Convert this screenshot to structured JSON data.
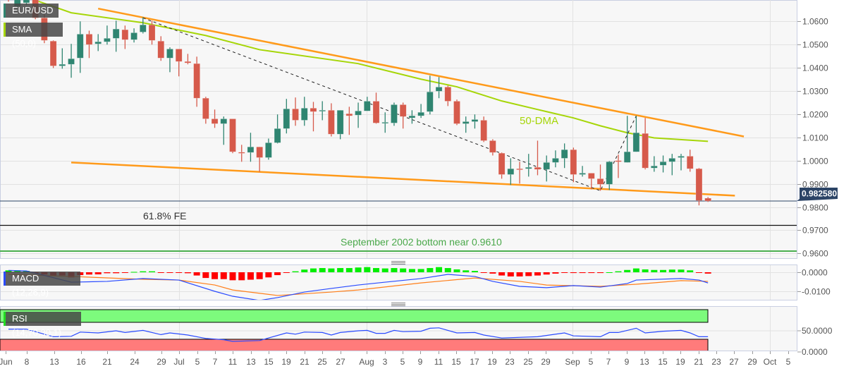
{
  "chart_data": {
    "type": "candlestick",
    "symbol": "EUR/USD",
    "candle_fields": [
      "date",
      "open",
      "high",
      "low",
      "close"
    ],
    "candles": [
      [
        "Jun 6",
        1.072,
        1.074,
        1.0685,
        1.0695
      ],
      [
        "Jun 7",
        1.0665,
        1.0735,
        1.0661,
        1.071
      ],
      [
        "Jun 8",
        1.068,
        1.0745,
        1.067,
        1.072
      ],
      [
        "Jun 9",
        1.0715,
        1.076,
        1.0609,
        1.0615
      ],
      [
        "Jun 10",
        1.0615,
        1.063,
        1.0506,
        1.0518
      ],
      [
        "Jun 13",
        1.0515,
        1.0518,
        1.0399,
        1.0408
      ],
      [
        "Jun 14",
        1.0408,
        1.0484,
        1.0396,
        1.0415
      ],
      [
        "Jun 15",
        1.0415,
        1.0503,
        1.0357,
        1.0439
      ],
      [
        "Jun 16",
        1.0442,
        1.06,
        1.0378,
        1.0545
      ],
      [
        "Jun 17",
        1.0545,
        1.056,
        1.0442,
        1.05
      ],
      [
        "Jun 20",
        1.0503,
        1.0545,
        1.0472,
        1.0512
      ],
      [
        "Jun 21",
        1.0512,
        1.0582,
        1.05,
        1.0527
      ],
      [
        "Jun 22",
        1.0527,
        1.0603,
        1.0469,
        1.0567
      ],
      [
        "Jun 23",
        1.0564,
        1.0582,
        1.0481,
        1.0521
      ],
      [
        "Jun 24",
        1.0521,
        1.057,
        1.0509,
        1.0551
      ],
      [
        "Jun 27",
        1.0554,
        1.0618,
        1.0548,
        1.0585
      ],
      [
        "Jun 28",
        1.0585,
        1.0603,
        1.05,
        1.0518
      ],
      [
        "Jun 29",
        1.0515,
        1.0536,
        1.043,
        1.0442
      ],
      [
        "Jun 30",
        1.0442,
        1.0488,
        1.0381,
        1.0481
      ],
      [
        "Jul 1",
        1.0481,
        1.0481,
        1.0363,
        1.0427
      ],
      [
        "Jul 4",
        1.0427,
        1.046,
        1.0415,
        1.0421
      ],
      [
        "Jul 5",
        1.0418,
        1.0448,
        1.0232,
        1.0269
      ],
      [
        "Jul 6",
        1.0269,
        1.0275,
        1.0159,
        1.018
      ],
      [
        "Jul 7",
        1.018,
        1.022,
        1.0141,
        1.0159
      ],
      [
        "Jul 8",
        1.0159,
        1.019,
        1.0068,
        1.018
      ],
      [
        "Jul 11",
        1.018,
        1.018,
        1.0032,
        1.0038
      ],
      [
        "Jul 12",
        1.0036,
        1.0068,
        0.9995,
        1.0035
      ],
      [
        "Jul 13",
        1.0035,
        1.012,
        0.9995,
        1.0059
      ],
      [
        "Jul 14",
        1.0059,
        1.0059,
        0.9952,
        1.0013
      ],
      [
        "Jul 15",
        1.0013,
        1.0095,
        1.0004,
        1.0077
      ],
      [
        "Jul 18",
        1.0077,
        1.0199,
        1.0074,
        1.0138
      ],
      [
        "Jul 19",
        1.0138,
        1.0266,
        1.0117,
        1.0223
      ],
      [
        "Jul 20",
        1.0223,
        1.0272,
        1.015,
        1.0174
      ],
      [
        "Jul 21",
        1.0174,
        1.0275,
        1.015,
        1.0226
      ],
      [
        "Jul 22",
        1.0226,
        1.0253,
        1.0126,
        1.0211
      ],
      [
        "Jul 25",
        1.0214,
        1.0256,
        1.0174,
        1.0217
      ],
      [
        "Jul 26",
        1.0217,
        1.0247,
        1.0104,
        1.0114
      ],
      [
        "Jul 27",
        1.0114,
        1.0217,
        1.0092,
        1.0217
      ],
      [
        "Jul 28",
        1.0202,
        1.0232,
        1.0111,
        1.0193
      ],
      [
        "Jul 29",
        1.0196,
        1.025,
        1.0141,
        1.0214
      ],
      [
        "Aug 1",
        1.0214,
        1.0275,
        1.0214,
        1.0256
      ],
      [
        "Aug 2",
        1.0256,
        1.0293,
        1.0159,
        1.0162
      ],
      [
        "Aug 3",
        1.0162,
        1.0208,
        1.012,
        1.0165
      ],
      [
        "Aug 4",
        1.0162,
        1.025,
        1.015,
        1.0241
      ],
      [
        "Aug 5",
        1.0241,
        1.025,
        1.0138,
        1.019
      ],
      [
        "Aug 8",
        1.0184,
        1.0217,
        1.0159,
        1.0193
      ],
      [
        "Aug 9",
        1.0193,
        1.0244,
        1.0184,
        1.0208
      ],
      [
        "Aug 10",
        1.0211,
        1.0366,
        1.0199,
        1.0296
      ],
      [
        "Aug 11",
        1.0299,
        1.036,
        1.0269,
        1.0317
      ],
      [
        "Aug 12",
        1.0317,
        1.0323,
        1.0235,
        1.0256
      ],
      [
        "Aug 15",
        1.0256,
        1.0263,
        1.0153,
        1.0159
      ],
      [
        "Aug 16",
        1.0159,
        1.019,
        1.012,
        1.0168
      ],
      [
        "Aug 17",
        1.0168,
        1.0199,
        1.0138,
        1.0177
      ],
      [
        "Aug 18",
        1.0174,
        1.019,
        1.008,
        1.0086
      ],
      [
        "Aug 19",
        1.0086,
        1.0092,
        1.0022,
        1.0035
      ],
      [
        "Aug 22",
        1.0032,
        1.0035,
        0.9922,
        0.994
      ],
      [
        "Aug 23",
        0.994,
        1.001,
        0.9895,
        0.9965
      ],
      [
        "Aug 24",
        0.9965,
        0.9995,
        0.9901,
        0.9962
      ],
      [
        "Aug 25",
        0.9965,
        1.0029,
        0.9931,
        0.9971
      ],
      [
        "Aug 26",
        0.9971,
        1.0086,
        0.9937,
        0.9962
      ],
      [
        "Aug 29",
        0.9962,
        1.0022,
        0.991,
        0.9992
      ],
      [
        "Aug 30",
        0.9992,
        1.0044,
        0.9971,
        1.001
      ],
      [
        "Aug 31",
        1.001,
        1.0074,
        0.9968,
        1.0047
      ],
      [
        "Sep 1",
        1.0047,
        1.0056,
        0.9907,
        0.994
      ],
      [
        "Sep 2",
        0.994,
        0.9977,
        0.9931,
        0.9946
      ],
      [
        "Sep 5",
        0.9946,
        0.9946,
        0.9876,
        0.9922
      ],
      [
        "Sep 6",
        0.9922,
        0.9983,
        0.987,
        0.9898
      ],
      [
        "Sep 7",
        0.9898,
        0.9998,
        0.9873,
        0.9995
      ],
      [
        "Sep 8",
        1.0,
        1.0026,
        0.9925,
        0.9995
      ],
      [
        "Sep 9",
        0.9992,
        1.0193,
        0.9992,
        1.0038
      ],
      [
        "Sep 12",
        1.0038,
        1.0193,
        1.0038,
        1.012
      ],
      [
        "Sep 13",
        1.0117,
        1.0184,
        0.9962,
        0.9968
      ],
      [
        "Sep 14",
        0.9968,
        1.0019,
        0.9952,
        0.9977
      ],
      [
        "Sep 15",
        0.998,
        1.0022,
        0.9949,
        0.9995
      ],
      [
        "Sep 16",
        0.9995,
        1.0029,
        0.9937,
        1.001
      ],
      [
        "Sep 19",
        1.0013,
        1.0029,
        0.9958,
        1.0019
      ],
      [
        "Sep 20",
        1.0019,
        1.0047,
        0.9952,
        0.9965
      ],
      [
        "Sep 21",
        0.9965,
        0.9968,
        0.9807,
        0.9828
      ],
      [
        "Sep 22",
        0.9838,
        0.9843,
        0.9822,
        0.9826
      ]
    ],
    "price_axis": {
      "ticks": [
        "1.0600",
        "1.0500",
        "1.0400",
        "1.0300",
        "1.0200",
        "1.0100",
        "1.0000",
        "0.9900",
        "0.9800",
        "0.9700",
        "0.9600"
      ],
      "range": [
        0.9585,
        1.0691
      ]
    },
    "x_axis": {
      "ticks": [
        "Jun",
        "8",
        "13",
        "16",
        "21",
        "24",
        "29",
        "Jul",
        "5",
        "7",
        "11",
        "13",
        "15",
        "19",
        "21",
        "25",
        "27",
        "Aug",
        "3",
        "5",
        "9",
        "11",
        "15",
        "17",
        "19",
        "23",
        "25",
        "29",
        "Sep",
        "5",
        "7",
        "9",
        "13",
        "15",
        "19",
        "21",
        "23",
        "27",
        "29",
        "Oct",
        "5"
      ]
    },
    "current_price": {
      "value": 0.98258,
      "label": "0.982580",
      "color": "#2c4466"
    },
    "sma": {
      "legend": "SMA (50,0)",
      "label": "50-DMA",
      "color": "#a6d608",
      "points": [
        [
          "Jun 9",
          1.0691
        ],
        [
          "Jun 15",
          1.0637
        ],
        [
          "Jun 27",
          1.0594
        ],
        [
          "Jul 6",
          1.0539
        ],
        [
          "Jul 14",
          1.0478
        ],
        [
          "Jul 29",
          1.0418
        ],
        [
          "Aug 9",
          1.0351
        ],
        [
          "Aug 15",
          1.0318
        ],
        [
          "Aug 22",
          1.0257
        ],
        [
          "Aug 29",
          1.0211
        ],
        [
          "Sep 1",
          1.0184
        ],
        [
          "Sep 6",
          1.015
        ],
        [
          "Sep 9",
          1.012
        ],
        [
          "Sep 14",
          1.0098
        ],
        [
          "Sep 22",
          1.0083
        ]
      ]
    },
    "trendlines": [
      {
        "points": [
          [
            "Jun 20",
            1.0655
          ],
          [
            "Sep 28",
            1.0104
          ]
        ],
        "color": "#ff9a1a",
        "style": "solid"
      },
      {
        "points": [
          [
            "Jun 15",
            0.9992
          ],
          [
            "Sep 27",
            0.9849
          ]
        ],
        "color": "#ff9a1a",
        "style": "solid"
      },
      {
        "points": [
          [
            "Jun 27",
            1.0615
          ],
          [
            "Sep 6",
            0.987
          ],
          [
            "Sep 12",
            1.0193
          ]
        ],
        "color": "#222222",
        "style": "dashed"
      }
    ],
    "levels": [
      {
        "value": 0.9721,
        "label": "61.8% FE",
        "color": "#111111",
        "label_color": "#333333"
      },
      {
        "value": 0.961,
        "label": "September 2002 bottom near 0.9610",
        "color": "#4caf50",
        "label_color": "#4aa84a"
      }
    ],
    "macd": {
      "legend": "MACD (12,26,9)",
      "ticks": [
        "0.0000",
        "-0.0100"
      ],
      "histogram": [
        0.001,
        0.001,
        0.0007,
        -0.0005,
        -0.0012,
        -0.0017,
        -0.0017,
        -0.0027,
        -0.0015,
        -0.0012,
        -0.0011,
        -0.0005,
        -0.0005,
        -0.0002,
        0.0002,
        0.0005,
        0.0005,
        -0.0002,
        -0.0002,
        -0.0002,
        -0.0005,
        -0.0017,
        -0.003,
        -0.0036,
        -0.0036,
        -0.0042,
        -0.0042,
        -0.0039,
        -0.0036,
        -0.0027,
        -0.0015,
        -0.0002,
        0.0005,
        0.0014,
        0.002,
        0.0022,
        0.002,
        0.0022,
        0.0022,
        0.0025,
        0.0027,
        0.0022,
        0.002,
        0.0022,
        0.002,
        0.0017,
        0.0017,
        0.0022,
        0.0027,
        0.0022,
        0.0015,
        0.001,
        0.0007,
        -0.0001,
        -0.0007,
        -0.0017,
        -0.0022,
        -0.0022,
        -0.002,
        -0.0017,
        -0.0012,
        -0.0007,
        -0.0002,
        -0.0004,
        -0.0004,
        -0.0004,
        -0.0004,
        0.0,
        0.0005,
        0.0012,
        0.002,
        0.0015,
        0.0012,
        0.0012,
        0.0014,
        0.0014,
        0.001,
        -0.0001,
        -0.0007
      ],
      "macd_line": [
        [
          "Jun 6",
          0.001
        ],
        [
          "Jun 8",
          0.0007
        ],
        [
          "Jun 15",
          -0.0052
        ],
        [
          "Jun 21",
          -0.0048
        ],
        [
          "Jun 27",
          -0.0033
        ],
        [
          "Jul 1",
          -0.0041
        ],
        [
          "Jul 7",
          -0.01
        ],
        [
          "Jul 11",
          -0.0126
        ],
        [
          "Jul 14",
          -0.0148
        ],
        [
          "Jul 18",
          -0.0133
        ],
        [
          "Jul 21",
          -0.0104
        ],
        [
          "Jul 26",
          -0.0085
        ],
        [
          "Jul 29",
          -0.0067
        ],
        [
          "Aug 3",
          -0.0052
        ],
        [
          "Aug 9",
          -0.0033
        ],
        [
          "Aug 12",
          -0.0011
        ],
        [
          "Aug 17",
          -0.0022
        ],
        [
          "Aug 19",
          -0.0048
        ],
        [
          "Aug 24",
          -0.0074
        ],
        [
          "Aug 29",
          -0.0081
        ],
        [
          "Sep 1",
          -0.007
        ],
        [
          "Sep 6",
          -0.0078
        ],
        [
          "Sep 9",
          -0.0059
        ],
        [
          "Sep 12",
          -0.0041
        ],
        [
          "Sep 19",
          -0.0033
        ],
        [
          "Sep 21",
          -0.0041
        ],
        [
          "Sep 22",
          -0.0056
        ]
      ],
      "signal_line": [
        [
          "Jun 6",
          -0.0011
        ],
        [
          "Jun 15",
          -0.0022
        ],
        [
          "Jun 27",
          -0.0037
        ],
        [
          "Jul 1",
          -0.0041
        ],
        [
          "Jul 7",
          -0.0067
        ],
        [
          "Jul 11",
          -0.0093
        ],
        [
          "Jul 18",
          -0.0122
        ],
        [
          "Jul 26",
          -0.0104
        ],
        [
          "Jul 29",
          -0.0093
        ],
        [
          "Aug 9",
          -0.0056
        ],
        [
          "Aug 17",
          -0.003
        ],
        [
          "Aug 24",
          -0.0048
        ],
        [
          "Aug 29",
          -0.0067
        ],
        [
          "Sep 6",
          -0.0074
        ],
        [
          "Sep 12",
          -0.0063
        ],
        [
          "Sep 19",
          -0.0044
        ],
        [
          "Sep 22",
          -0.0048
        ]
      ],
      "colors": {
        "macd": "#2a4bff",
        "signal": "#ff7f1a",
        "hist_up": "#00ee00",
        "hist_down": "#ff0000"
      }
    },
    "rsi": {
      "legend": "RSI (14,70,30,1)",
      "ticks": [
        "50.0000",
        "0.0000"
      ],
      "overbought": 70,
      "oversold": 30,
      "points": [
        [
          "Jun 6",
          54
        ],
        [
          "Jun 8",
          54
        ],
        [
          "Jun 13",
          36
        ],
        [
          "Jun 15",
          37
        ],
        [
          "Jun 16",
          47
        ],
        [
          "Jun 20",
          45
        ],
        [
          "Jun 22",
          50
        ],
        [
          "Jun 23",
          46
        ],
        [
          "Jun 27",
          51
        ],
        [
          "Jun 29",
          41
        ],
        [
          "Jun 30",
          45
        ],
        [
          "Jul 4",
          40
        ],
        [
          "Jul 6",
          32
        ],
        [
          "Jul 8",
          29
        ],
        [
          "Jul 11",
          25
        ],
        [
          "Jul 14",
          27
        ],
        [
          "Jul 19",
          45
        ],
        [
          "Jul 20",
          42
        ],
        [
          "Jul 21",
          47
        ],
        [
          "Jul 25",
          46
        ],
        [
          "Jul 26",
          40
        ],
        [
          "Jul 27",
          46
        ],
        [
          "Jul 29",
          50
        ],
        [
          "Aug 1",
          51
        ],
        [
          "Aug 2",
          44
        ],
        [
          "Aug 3",
          44
        ],
        [
          "Aug 4",
          51
        ],
        [
          "Aug 5",
          48
        ],
        [
          "Aug 9",
          49
        ],
        [
          "Aug 10",
          56
        ],
        [
          "Aug 11",
          57
        ],
        [
          "Aug 15",
          45
        ],
        [
          "Aug 17",
          46
        ],
        [
          "Aug 18",
          40
        ],
        [
          "Aug 22",
          33
        ],
        [
          "Aug 26",
          36
        ],
        [
          "Aug 31",
          45
        ],
        [
          "Sep 1",
          38
        ],
        [
          "Sep 6",
          36
        ],
        [
          "Sep 7",
          46
        ],
        [
          "Sep 8",
          46
        ],
        [
          "Sep 12",
          56
        ],
        [
          "Sep 13",
          45
        ],
        [
          "Sep 15",
          49
        ],
        [
          "Sep 19",
          51
        ],
        [
          "Sep 20",
          45
        ],
        [
          "Sep 21",
          36
        ],
        [
          "Sep 22",
          36
        ]
      ],
      "colors": {
        "line": "#2a4bff",
        "overbought_zone": "#7dfb7d",
        "oversold_zone": "#ff7b7b"
      }
    },
    "colors": {
      "up": "#2f8571",
      "down": "#d65a4b"
    },
    "grid": true
  }
}
